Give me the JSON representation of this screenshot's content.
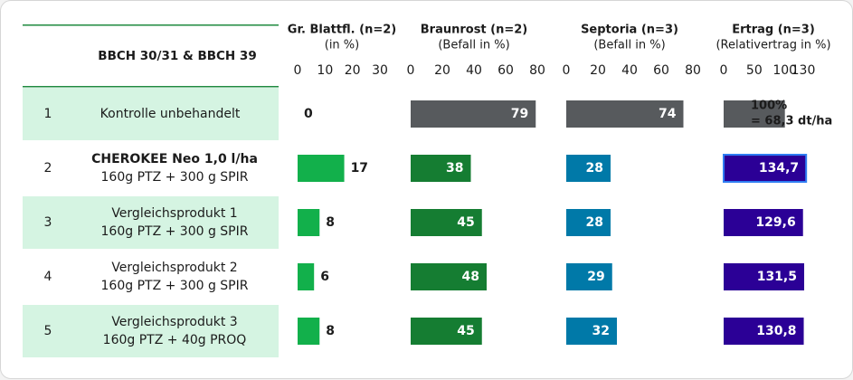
{
  "row_header": "BBCH 30/31 & BBCH 39",
  "rows": [
    {
      "num": "1",
      "line1": "Kontrolle unbehandelt",
      "line2": "",
      "bold": false,
      "highlight": true
    },
    {
      "num": "2",
      "line1": "CHEROKEE Neo 1,0 l/ha",
      "line2": "160g PTZ + 300 g SPIR",
      "bold": true,
      "highlight": false
    },
    {
      "num": "3",
      "line1": "Vergleichsprodukt 1",
      "line2": "160g PTZ + 300 g SPIR",
      "bold": false,
      "highlight": true
    },
    {
      "num": "4",
      "line1": "Vergleichsprodukt 2",
      "line2": "160g PTZ + 300 g SPIR",
      "bold": false,
      "highlight": false
    },
    {
      "num": "5",
      "line1": "Vergleichsprodukt 3",
      "line2": "160g PTZ + 40g PROQ",
      "bold": false,
      "highlight": true
    }
  ],
  "colors": {
    "row_highlight": "#d5f4e2",
    "header_rule": "#1f8a3f",
    "control_gray": "#575a5d",
    "light_green": "#12b04b",
    "dark_green": "#157d32",
    "blue": "#0079a8",
    "purple": "#2b0096",
    "purple_outline": "#2f7df2"
  },
  "chart_data": [
    {
      "type": "bar",
      "title": "Gr. Blattfl. (n=2)",
      "subtitle": "(in %)",
      "xlim": [
        0,
        30
      ],
      "ticks": [
        "0",
        "10",
        "20",
        "30"
      ],
      "values": [
        0,
        17,
        8,
        6,
        8
      ],
      "labels": [
        "0",
        "17",
        "8",
        "6",
        "8"
      ],
      "bar_colors": [
        "#575a5d",
        "#12b04b",
        "#12b04b",
        "#12b04b",
        "#12b04b"
      ],
      "label_position": "outside"
    },
    {
      "type": "bar",
      "title": "Braunrost (n=2)",
      "subtitle": "(Befall in %)",
      "xlim": [
        0,
        80
      ],
      "ticks": [
        "0",
        "20",
        "40",
        "60",
        "80"
      ],
      "values": [
        79,
        38,
        45,
        48,
        45
      ],
      "labels": [
        "79",
        "38",
        "45",
        "48",
        "45"
      ],
      "bar_colors": [
        "#575a5d",
        "#157d32",
        "#157d32",
        "#157d32",
        "#157d32"
      ],
      "label_position": "inside"
    },
    {
      "type": "bar",
      "title": "Septoria (n=3)",
      "subtitle": "(Befall in %)",
      "xlim": [
        0,
        80
      ],
      "ticks": [
        "0",
        "20",
        "40",
        "60",
        "80"
      ],
      "values": [
        74,
        28,
        28,
        29,
        32
      ],
      "labels": [
        "74",
        "28",
        "28",
        "29",
        "32"
      ],
      "bar_colors": [
        "#575a5d",
        "#0079a8",
        "#0079a8",
        "#0079a8",
        "#0079a8"
      ],
      "label_position": "inside"
    },
    {
      "type": "bar",
      "title": "Ertrag (n=3)",
      "subtitle": "(Relativertrag in %)",
      "xlim": [
        0,
        130
      ],
      "ticks": [
        "0",
        "50",
        "100",
        "130"
      ],
      "tick_values": [
        0,
        50,
        100,
        130
      ],
      "values": [
        100,
        134.7,
        129.6,
        131.5,
        130.8
      ],
      "labels": [
        "",
        "134,7",
        "129,6",
        "131,5",
        "130,8"
      ],
      "control_label": [
        "100%",
        "= 68,3 dt/ha"
      ],
      "bar_colors": [
        "#575a5d",
        "#2b0096",
        "#2b0096",
        "#2b0096",
        "#2b0096"
      ],
      "label_position": "inside"
    }
  ]
}
